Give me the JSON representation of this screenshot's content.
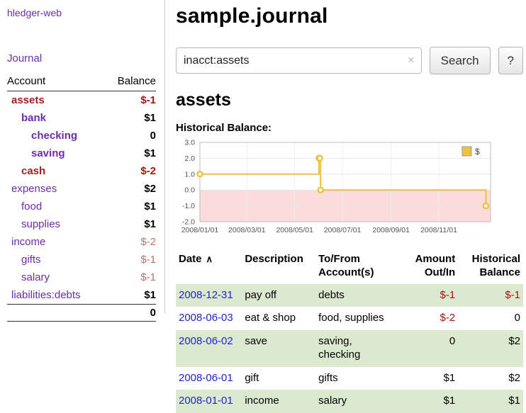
{
  "sidebar": {
    "app_name": "hledger-web",
    "nav": {
      "journal": "Journal"
    },
    "accounts_table": {
      "headers": {
        "account": "Account",
        "balance": "Balance"
      },
      "accounts": [
        {
          "name": "assets",
          "balance": "$-1",
          "depth": 1,
          "bold": true,
          "name_red": true,
          "bal_class": "neg"
        },
        {
          "name": "bank",
          "balance": "$1",
          "depth": 2,
          "bold": true,
          "name_red": false,
          "bal_class": ""
        },
        {
          "name": "checking",
          "balance": "0",
          "depth": 3,
          "bold": true,
          "name_red": false,
          "bal_class": ""
        },
        {
          "name": "saving",
          "balance": "$1",
          "depth": 3,
          "bold": true,
          "name_red": false,
          "bal_class": ""
        },
        {
          "name": "cash",
          "balance": "$-2",
          "depth": 2,
          "bold": true,
          "name_red": true,
          "bal_class": "neg"
        },
        {
          "name": "expenses",
          "balance": "$2",
          "depth": 1,
          "bold": false,
          "name_red": false,
          "bal_class": ""
        },
        {
          "name": "food",
          "balance": "$1",
          "depth": 2,
          "bold": false,
          "name_red": false,
          "bal_class": ""
        },
        {
          "name": "supplies",
          "balance": "$1",
          "depth": 2,
          "bold": false,
          "name_red": false,
          "bal_class": ""
        },
        {
          "name": "income",
          "balance": "$-2",
          "depth": 1,
          "bold": false,
          "name_red": false,
          "bal_class": "neg-soft"
        },
        {
          "name": "gifts",
          "balance": "$-1",
          "depth": 2,
          "bold": false,
          "name_red": false,
          "bal_class": "neg-soft"
        },
        {
          "name": "salary",
          "balance": "$-1",
          "depth": 2,
          "bold": false,
          "name_red": false,
          "bal_class": "neg-soft"
        },
        {
          "name": "liabilities:debts",
          "balance": "$1",
          "depth": 1,
          "bold": false,
          "name_red": false,
          "bal_class": ""
        }
      ],
      "total": "0"
    }
  },
  "header": {
    "title": "sample.journal"
  },
  "search": {
    "value": "inacct:assets",
    "clear_icon": "×",
    "button_label": "Search",
    "help_label": "?"
  },
  "account_page": {
    "title": "assets",
    "chart_label": "Historical Balance:"
  },
  "chart_data": {
    "type": "line",
    "step": true,
    "title": "Historical Balance",
    "series": [
      {
        "name": "$",
        "points": [
          [
            "2008-01-01",
            1
          ],
          [
            "2008-06-01",
            2
          ],
          [
            "2008-06-02",
            2
          ],
          [
            "2008-06-03",
            0
          ],
          [
            "2008-12-31",
            -1
          ]
        ]
      }
    ],
    "ylim": [
      -2,
      3
    ],
    "yticks": [
      3,
      2,
      1,
      0,
      -1,
      -2
    ],
    "xticks": [
      "2008/01/01",
      "2008/03/01",
      "2008/05/01",
      "2008/07/01",
      "2008/09/01",
      "2008/11/01"
    ],
    "xlim": [
      "2008-01-01",
      "2009-01-06"
    ],
    "line_color": "#edc240",
    "negative_fill": "#fbdcdc",
    "grid": true,
    "legend_position": "top-right"
  },
  "register": {
    "columns": [
      "Date",
      "Description",
      "To/From Account(s)",
      "Amount Out/In",
      "Historical Balance"
    ],
    "sort_indicator": "∧",
    "rows": [
      {
        "date": "2008-12-31",
        "description": "pay off",
        "accounts": "debts",
        "amount": "$-1",
        "balance": "$-1"
      },
      {
        "date": "2008-06-03",
        "description": "eat & shop",
        "accounts": "food, supplies",
        "amount": "$-2",
        "balance": "0"
      },
      {
        "date": "2008-06-02",
        "description": "save",
        "accounts": "saving, checking",
        "amount": "0",
        "balance": "$2"
      },
      {
        "date": "2008-06-01",
        "description": "gift",
        "accounts": "gifts",
        "amount": "$1",
        "balance": "$2"
      },
      {
        "date": "2008-01-01",
        "description": "income",
        "accounts": "salary",
        "amount": "$1",
        "balance": "$1"
      }
    ]
  }
}
